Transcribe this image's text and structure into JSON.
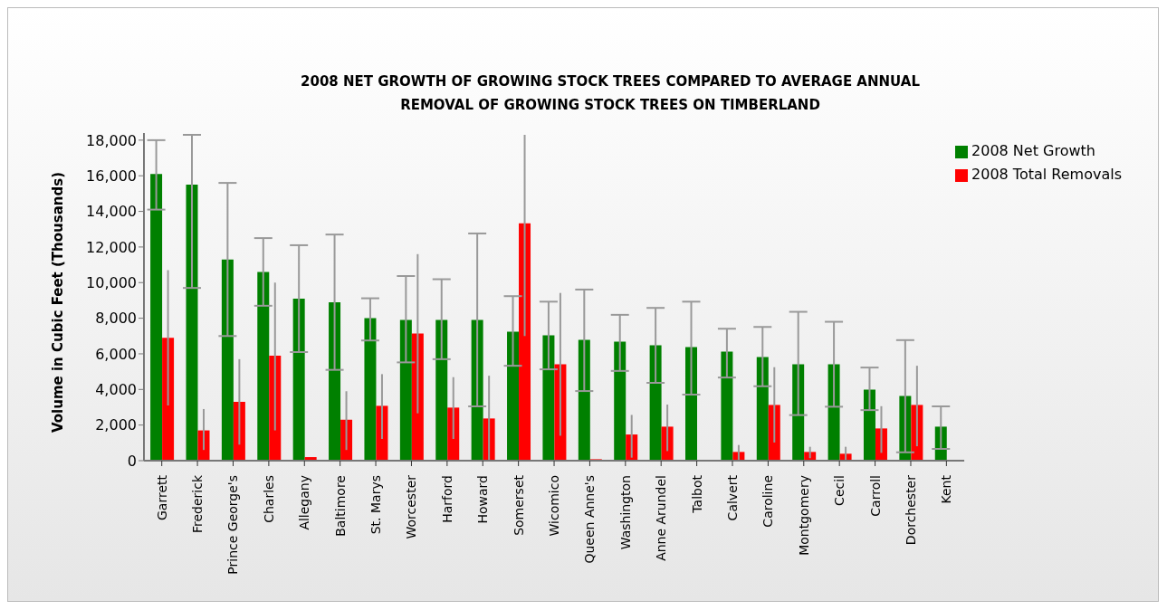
{
  "chart_data": {
    "type": "bar",
    "title": "2008 NET GROWTH OF GROWING STOCK TREES COMPARED TO AVERAGE ANNUAL REMOVAL OF GROWING STOCK TREES ON TIMBERLAND",
    "ylabel": "Volume in Cubic Feet (Thousands)",
    "categories": [
      "Garrett",
      "Frederick",
      "Prince George's",
      "Charles",
      "Allegany",
      "Baltimore",
      "St. Marys",
      "Worcester",
      "Harford",
      "Howard",
      "Somerset",
      "Wicomico",
      "Queen Anne's",
      "Washington",
      "Anne Arundel",
      "Talbot",
      "Calvert",
      "Caroline",
      "Montgomery",
      "Cecil",
      "Carroll",
      "Dorchester",
      "Kent"
    ],
    "series": [
      {
        "name": "2008 Net Growth",
        "color": "#008000",
        "values": [
          16100,
          15500,
          11300,
          10600,
          9100,
          8900,
          8000,
          7900,
          7900,
          7900,
          7240,
          7040,
          6790,
          6680,
          6480,
          6380,
          6130,
          5820,
          5410,
          5410,
          3990,
          3640,
          1910
        ],
        "errors": [
          [
            14100,
            18000
          ],
          [
            9700,
            18300
          ],
          [
            7000,
            15600
          ],
          [
            8700,
            12500
          ],
          [
            6100,
            12100
          ],
          [
            5100,
            12700
          ],
          [
            6750,
            9120
          ],
          [
            5520,
            10370
          ],
          [
            5700,
            10190
          ],
          [
            3050,
            12760
          ],
          [
            5330,
            9240
          ],
          [
            5130,
            8930
          ],
          [
            3910,
            9610
          ],
          [
            5040,
            8190
          ],
          [
            4370,
            8580
          ],
          [
            3710,
            8930
          ],
          [
            4670,
            7410
          ],
          [
            4180,
            7510
          ],
          [
            2560,
            8360
          ],
          [
            3030,
            7800
          ],
          [
            2840,
            5230
          ],
          [
            470,
            6770
          ],
          [
            660,
            3050
          ]
        ]
      },
      {
        "name": "2008 Total Removals",
        "color": "#ff0000",
        "values": [
          6900,
          1700,
          3300,
          5900,
          200,
          2300,
          3080,
          7140,
          2980,
          2370,
          13330,
          5410,
          80,
          1470,
          1910,
          0,
          490,
          3130,
          490,
          390,
          1810,
          3130,
          0
        ],
        "errors": [
          [
            3100,
            10700
          ],
          [
            600,
            2900
          ],
          [
            900,
            5700
          ],
          [
            1700,
            10000
          ],
          null,
          [
            600,
            3900
          ],
          [
            1220,
            4860
          ],
          [
            2660,
            11600
          ],
          [
            1220,
            4690
          ],
          [
            30,
            4770
          ],
          [
            7000,
            18300
          ],
          [
            1400,
            9420
          ],
          null,
          [
            170,
            2570
          ],
          [
            540,
            3150
          ],
          null,
          [
            30,
            880
          ],
          [
            1020,
            5250
          ],
          [
            140,
            780
          ],
          [
            30,
            780
          ],
          [
            440,
            3060
          ],
          [
            810,
            5330
          ],
          null
        ]
      }
    ],
    "ylim": [
      0,
      18400
    ],
    "yticks": [
      0,
      {
        "value": 2000,
        "label": "2,000"
      },
      {
        "value": 4000,
        "label": "4,000"
      },
      {
        "value": 6000,
        "label": "6,000"
      },
      {
        "value": 8000,
        "label": "8,000"
      },
      {
        "value": 10000,
        "label": "10,000"
      },
      {
        "value": 12000,
        "label": "12,000"
      },
      {
        "value": 14000,
        "label": "14,000"
      },
      {
        "value": 16000,
        "label": "16,000"
      },
      {
        "value": 18000,
        "label": "18,000"
      }
    ],
    "grid": false,
    "legend": "top right"
  }
}
